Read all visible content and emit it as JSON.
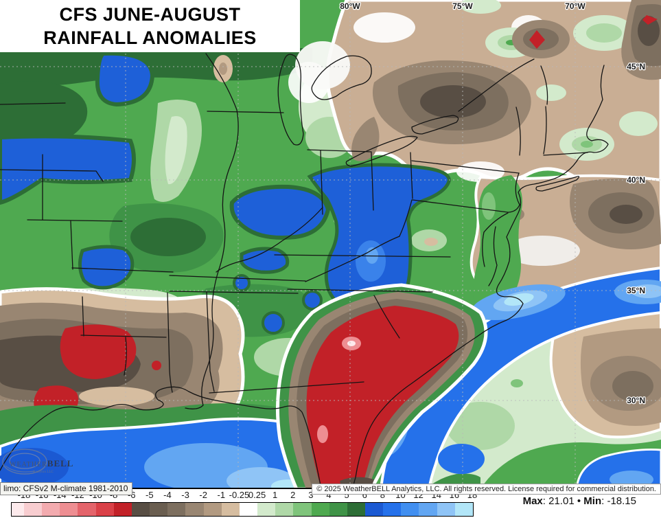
{
  "title": {
    "line1": "CFS JUNE-AUGUST",
    "line2": "RAINFALL ANOMALIES"
  },
  "axes": {
    "lon": [
      "80°W",
      "75°W",
      "70°W"
    ],
    "lat": [
      "45°N",
      "40°N",
      "35°N",
      "30°N"
    ]
  },
  "watermark": {
    "name_prefix": "Weather",
    "name_suffix": "BELL",
    "tagline": "Analytics LLC"
  },
  "footer": {
    "climo": "limo: CFSv2 M-climate 1981-2010",
    "copyright": "© 2025 WeatherBELL Analytics, LLC. All rights reserved. License required for commercial distribution.",
    "stats": {
      "max_label": "Max",
      "max_value": "21.01",
      "bullet": "•",
      "min_label": "Min",
      "min_value": "-18.15"
    }
  },
  "colorbar": {
    "labels": [
      "-18",
      "-16",
      "-14",
      "-12",
      "-10",
      "-8",
      "-6",
      "-5",
      "-4",
      "-3",
      "-2",
      "-1",
      "-0.25",
      "0.25",
      "1",
      "2",
      "3",
      "4",
      "5",
      "6",
      "8",
      "10",
      "12",
      "14",
      "16",
      "18"
    ],
    "segment_colors": [
      "#fdeaec",
      "#f8cdd0",
      "#f3abaf",
      "#ee8e92",
      "#e4646b",
      "#da4148",
      "#c22128",
      "#584e44",
      "#6a5e50",
      "#7d6f5f",
      "#998672",
      "#b29a81",
      "#d6bda0",
      "#ffffff",
      "#d3eacc",
      "#afd8a7",
      "#7fc47b",
      "#4ea94f",
      "#3f9347",
      "#2d6e36",
      "#1b59d2",
      "#2571ea",
      "#418ff0",
      "#62a6f2",
      "#8fc4f6",
      "#b2e6f8"
    ],
    "units_note": ""
  }
}
